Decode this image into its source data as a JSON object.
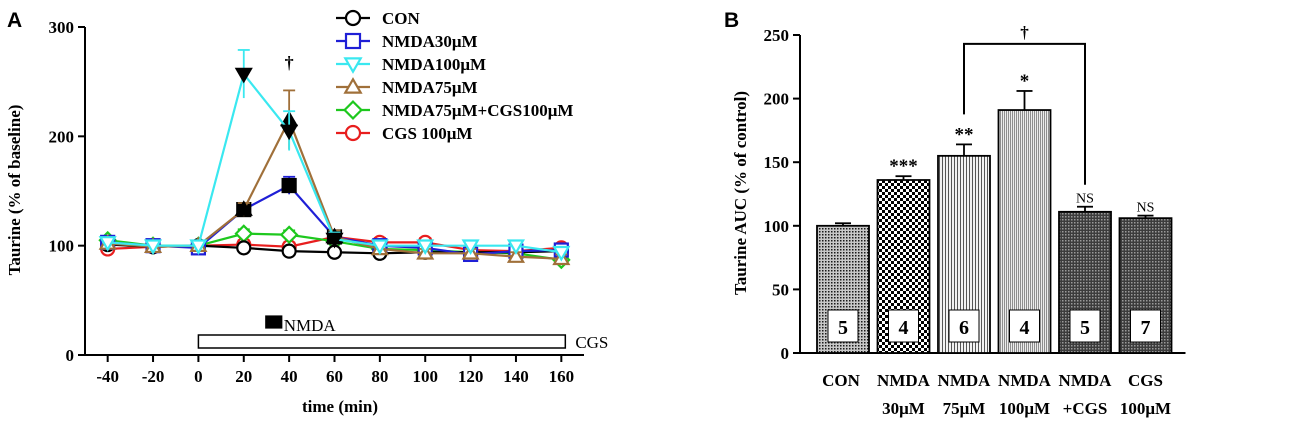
{
  "chart_data": [
    {
      "panel_letter": "A",
      "type": "line",
      "xlabel": "time (min)",
      "ylabel": "Taurine (% of baseline)",
      "xlim": [
        -50,
        170
      ],
      "ylim": [
        0,
        300
      ],
      "xticks": [
        -40,
        -20,
        0,
        20,
        40,
        60,
        80,
        100,
        120,
        140,
        160
      ],
      "yticks": [
        0,
        100,
        200,
        300
      ],
      "x": [
        -40,
        -20,
        0,
        20,
        40,
        60,
        80,
        100,
        120,
        140,
        160
      ],
      "legend_position": "top-right",
      "series": [
        {
          "name": "CON",
          "color": "#000000",
          "marker": "circle",
          "values": [
            101,
            99,
            100,
            98,
            95,
            94,
            93,
            94,
            94,
            94,
            95
          ],
          "errors": [
            3,
            3,
            3,
            2,
            2,
            2,
            2,
            2,
            2,
            2,
            2
          ]
        },
        {
          "name": "NMDA30μM",
          "color": "#1f1fd6",
          "marker": "square",
          "values": [
            103,
            100,
            98,
            133,
            155,
            108,
            100,
            98,
            92,
            95,
            96
          ],
          "errors": [
            3,
            3,
            3,
            6,
            8,
            5,
            4,
            4,
            4,
            4,
            4
          ]
        },
        {
          "name": "NMDA100μM",
          "color": "#3ae8f0",
          "marker": "triangle-down",
          "values": [
            103,
            100,
            100,
            257,
            205,
            106,
            100,
            100,
            100,
            100,
            94
          ],
          "errors": [
            3,
            3,
            3,
            22,
            18,
            6,
            4,
            4,
            4,
            4,
            4
          ]
        },
        {
          "name": "NMDA75μM",
          "color": "#a0703a",
          "marker": "triangle-up",
          "values": [
            102,
            99,
            100,
            133,
            215,
            108,
            97,
            93,
            93,
            90,
            88
          ],
          "errors": [
            3,
            3,
            3,
            6,
            27,
            6,
            4,
            4,
            4,
            4,
            4
          ]
        },
        {
          "name": "NMDA75μM+CGS100μM",
          "color": "#1ec81e",
          "marker": "diamond",
          "values": [
            105,
            100,
            100,
            111,
            110,
            104,
            97,
            96,
            94,
            93,
            87
          ],
          "errors": [
            3,
            3,
            3,
            4,
            4,
            4,
            4,
            4,
            4,
            4,
            4
          ]
        },
        {
          "name": "CGS 100μM",
          "color": "#e81e1e",
          "marker": "circle",
          "values": [
            97,
            99,
            100,
            101,
            99,
            108,
            103,
            103,
            96,
            95,
            98
          ],
          "errors": [
            3,
            3,
            3,
            4,
            4,
            4,
            4,
            4,
            4,
            4,
            4
          ]
        }
      ],
      "annotations": [
        {
          "text": "†",
          "x": 40,
          "y": 262
        }
      ],
      "bars": [
        {
          "label": "NMDA",
          "x_start": 20,
          "x_end": 40,
          "fill": "#000000"
        },
        {
          "label": "CGS",
          "x_start": 0,
          "x_end": 160,
          "fill": "#ffffff"
        }
      ]
    },
    {
      "panel_letter": "B",
      "type": "bar",
      "ylabel": "Taurine AUC (% of  control)",
      "ylim": [
        0,
        250
      ],
      "yticks": [
        0,
        50,
        100,
        150,
        200,
        250
      ],
      "categories": [
        {
          "line1": "CON",
          "line2": ""
        },
        {
          "line1": "NMDA",
          "line2": "30μM"
        },
        {
          "line1": "NMDA",
          "line2": "75μM"
        },
        {
          "line1": "NMDA",
          "line2": "100μM"
        },
        {
          "line1": "NMDA",
          "line2": "+CGS"
        },
        {
          "line1": "CGS",
          "line2": "100μM"
        }
      ],
      "values": [
        100,
        136,
        155,
        191,
        111,
        106
      ],
      "errors": [
        2,
        3,
        9,
        15,
        4,
        2
      ],
      "n": [
        "5",
        "4",
        "6",
        "4",
        "5",
        "7"
      ],
      "significance": [
        "",
        "***",
        "**",
        "*",
        "NS",
        "NS"
      ],
      "patterns": [
        "fine-dots",
        "checker",
        "vertical-lines",
        "vertical-lines-fine",
        "dark-dots",
        "dark-dots"
      ],
      "bracket": {
        "from_index": 2,
        "to_index": 4,
        "y": 243,
        "label": "†"
      }
    }
  ]
}
